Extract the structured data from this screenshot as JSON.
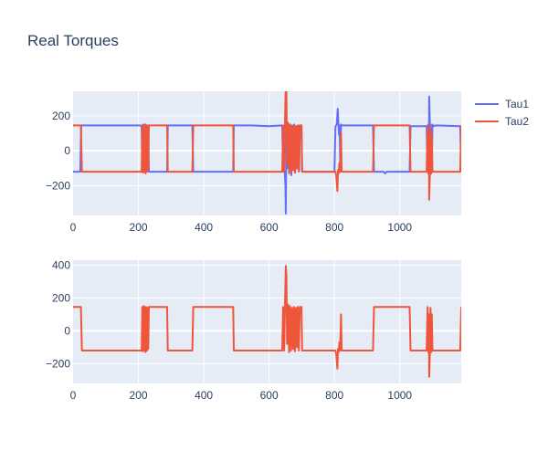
{
  "title": "Real Torques",
  "colors": {
    "plot_background": "#e5ecf6",
    "grid": "#ffffff",
    "text": "#2a3f5f"
  },
  "legend": [
    {
      "label": "Tau1",
      "color": "#636efa"
    },
    {
      "label": "Tau2",
      "color": "#ef553b"
    }
  ],
  "chart_data": [
    {
      "type": "line",
      "title": "Real Torques",
      "xlabel": "",
      "ylabel": "",
      "xlim": [
        0,
        1188
      ],
      "ylim": [
        -370,
        340
      ],
      "x_ticks": [
        0,
        200,
        400,
        600,
        800,
        1000
      ],
      "y_ticks": [
        -200,
        0,
        200
      ],
      "grid": true,
      "legend": "top-right",
      "series": [
        {
          "name": "Tau1",
          "color": "#636efa",
          "points": [
            [
              0,
              -120
            ],
            [
              22,
              -120
            ],
            [
              25,
              145
            ],
            [
              205,
              145
            ],
            [
              210,
              140
            ],
            [
              212,
              -120
            ],
            [
              214,
              150
            ],
            [
              216,
              -120
            ],
            [
              218,
              145
            ],
            [
              220,
              -100
            ],
            [
              222,
              150
            ],
            [
              224,
              -120
            ],
            [
              226,
              145
            ],
            [
              228,
              -115
            ],
            [
              230,
              145
            ],
            [
              232,
              -120
            ],
            [
              288,
              -120
            ],
            [
              290,
              145
            ],
            [
              365,
              145
            ],
            [
              368,
              -120
            ],
            [
              490,
              -120
            ],
            [
              492,
              145
            ],
            [
              545,
              145
            ],
            [
              600,
              140
            ],
            [
              640,
              145
            ],
            [
              643,
              -120
            ],
            [
              648,
              -120
            ],
            [
              650,
              -200
            ],
            [
              651,
              -360
            ],
            [
              653,
              150
            ],
            [
              656,
              -100
            ],
            [
              659,
              140
            ],
            [
              662,
              -120
            ],
            [
              665,
              150
            ],
            [
              668,
              -140
            ],
            [
              671,
              145
            ],
            [
              674,
              -110
            ],
            [
              677,
              150
            ],
            [
              680,
              -120
            ],
            [
              683,
              140
            ],
            [
              686,
              -100
            ],
            [
              689,
              145
            ],
            [
              692,
              -115
            ],
            [
              694,
              145
            ],
            [
              699,
              145
            ],
            [
              701,
              -120
            ],
            [
              800,
              -120
            ],
            [
              803,
              140
            ],
            [
              807,
              150
            ],
            [
              810,
              240
            ],
            [
              812,
              150
            ],
            [
              814,
              90
            ],
            [
              816,
              145
            ],
            [
              818,
              -120
            ],
            [
              820,
              150
            ],
            [
              822,
              145
            ],
            [
              918,
              145
            ],
            [
              921,
              -120
            ],
            [
              950,
              -120
            ],
            [
              955,
              -130
            ],
            [
              960,
              -120
            ],
            [
              1030,
              -120
            ],
            [
              1033,
              140
            ],
            [
              1082,
              140
            ],
            [
              1085,
              -120
            ],
            [
              1087,
              150
            ],
            [
              1089,
              -80
            ],
            [
              1090,
              310
            ],
            [
              1092,
              150
            ],
            [
              1094,
              -120
            ],
            [
              1096,
              145
            ],
            [
              1098,
              -100
            ],
            [
              1100,
              150
            ],
            [
              1102,
              140
            ],
            [
              1110,
              145
            ],
            [
              1185,
              140
            ],
            [
              1188,
              -120
            ]
          ]
        },
        {
          "name": "Tau2",
          "color": "#ef553b",
          "points": [
            [
              0,
              145
            ],
            [
              24,
              145
            ],
            [
              27,
              -120
            ],
            [
              210,
              -120
            ],
            [
              212,
              145
            ],
            [
              214,
              -125
            ],
            [
              216,
              150
            ],
            [
              218,
              -120
            ],
            [
              220,
              145
            ],
            [
              222,
              -130
            ],
            [
              224,
              145
            ],
            [
              226,
              -120
            ],
            [
              228,
              140
            ],
            [
              230,
              -110
            ],
            [
              232,
              145
            ],
            [
              288,
              145
            ],
            [
              290,
              -120
            ],
            [
              365,
              -120
            ],
            [
              368,
              145
            ],
            [
              490,
              145
            ],
            [
              492,
              -120
            ],
            [
              640,
              -120
            ],
            [
              643,
              145
            ],
            [
              646,
              -120
            ],
            [
              649,
              200
            ],
            [
              651,
              395
            ],
            [
              653,
              330
            ],
            [
              655,
              -80
            ],
            [
              658,
              160
            ],
            [
              661,
              -130
            ],
            [
              664,
              150
            ],
            [
              667,
              -120
            ],
            [
              670,
              140
            ],
            [
              673,
              -110
            ],
            [
              676,
              145
            ],
            [
              679,
              -125
            ],
            [
              682,
              140
            ],
            [
              685,
              -100
            ],
            [
              688,
              145
            ],
            [
              691,
              -120
            ],
            [
              694,
              145
            ],
            [
              699,
              145
            ],
            [
              701,
              -120
            ],
            [
              800,
              -120
            ],
            [
              803,
              -120
            ],
            [
              806,
              -150
            ],
            [
              809,
              -230
            ],
            [
              811,
              -110
            ],
            [
              813,
              -130
            ],
            [
              815,
              -70
            ],
            [
              817,
              -120
            ],
            [
              820,
              100
            ],
            [
              822,
              -120
            ],
            [
              918,
              -120
            ],
            [
              921,
              145
            ],
            [
              1030,
              145
            ],
            [
              1033,
              -120
            ],
            [
              1082,
              -120
            ],
            [
              1085,
              145
            ],
            [
              1087,
              -130
            ],
            [
              1089,
              100
            ],
            [
              1090,
              -280
            ],
            [
              1092,
              -130
            ],
            [
              1094,
              140
            ],
            [
              1096,
              -130
            ],
            [
              1098,
              100
            ],
            [
              1100,
              -120
            ],
            [
              1185,
              -120
            ],
            [
              1188,
              145
            ]
          ]
        }
      ]
    },
    {
      "type": "line",
      "xlabel": "",
      "ylabel": "",
      "xlim": [
        0,
        1188
      ],
      "ylim": [
        -320,
        430
      ],
      "x_ticks": [
        0,
        200,
        400,
        600,
        800,
        1000
      ],
      "y_ticks": [
        -200,
        0,
        200,
        400
      ],
      "grid": true,
      "series_ref": [
        "Tau2"
      ]
    }
  ]
}
